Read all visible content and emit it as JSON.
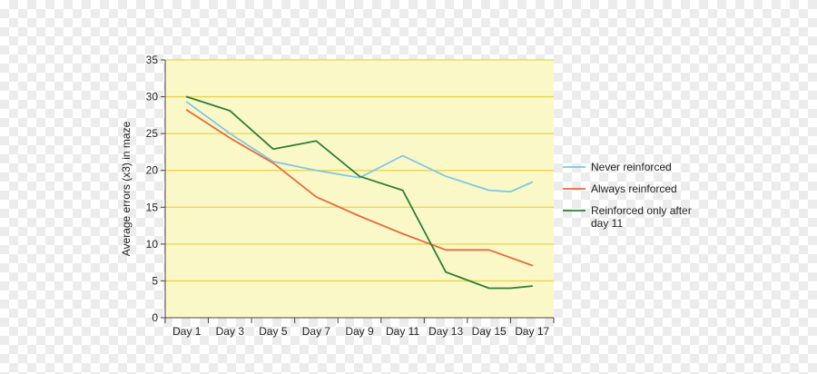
{
  "chart_data": {
    "type": "line",
    "title": "",
    "xlabel": "",
    "ylabel": "Average errors (x3) in maze",
    "ylim": [
      0,
      35
    ],
    "yticks": [
      0,
      5,
      10,
      15,
      20,
      25,
      30,
      35
    ],
    "categories": [
      "Day 1",
      "Day 3",
      "Day 5",
      "Day 7",
      "Day 9",
      "Day 11",
      "Day 13",
      "Day 15",
      "Day 17"
    ],
    "grid": "horizontal",
    "legend_position": "right",
    "background": "#fbf8c8",
    "gridline_color": "#e8d44a",
    "series": [
      {
        "name": "Never reinforced",
        "color": "#7ec8e3",
        "x": [
          1,
          3,
          5,
          7,
          9,
          11,
          13,
          15,
          16,
          17
        ],
        "values": [
          29.3,
          25.0,
          21.2,
          20.0,
          19.0,
          22.0,
          19.2,
          17.3,
          17.1,
          18.4
        ]
      },
      {
        "name": "Always reinforced",
        "color": "#e86a3a",
        "x": [
          1,
          3,
          5,
          7,
          9,
          11,
          13,
          15,
          17
        ],
        "values": [
          28.2,
          24.4,
          21.0,
          16.4,
          13.8,
          11.4,
          9.2,
          9.2,
          7.1
        ]
      },
      {
        "name": "Reinforced only after day 11",
        "legend_lines": [
          "Reinforced only after",
          "day 11"
        ],
        "color": "#2e7d3a",
        "x": [
          1,
          3,
          5,
          7,
          9,
          11,
          13,
          15,
          16,
          17
        ],
        "values": [
          30.0,
          28.1,
          22.9,
          24.0,
          19.2,
          17.3,
          6.2,
          4.0,
          4.0,
          4.3
        ]
      }
    ]
  }
}
